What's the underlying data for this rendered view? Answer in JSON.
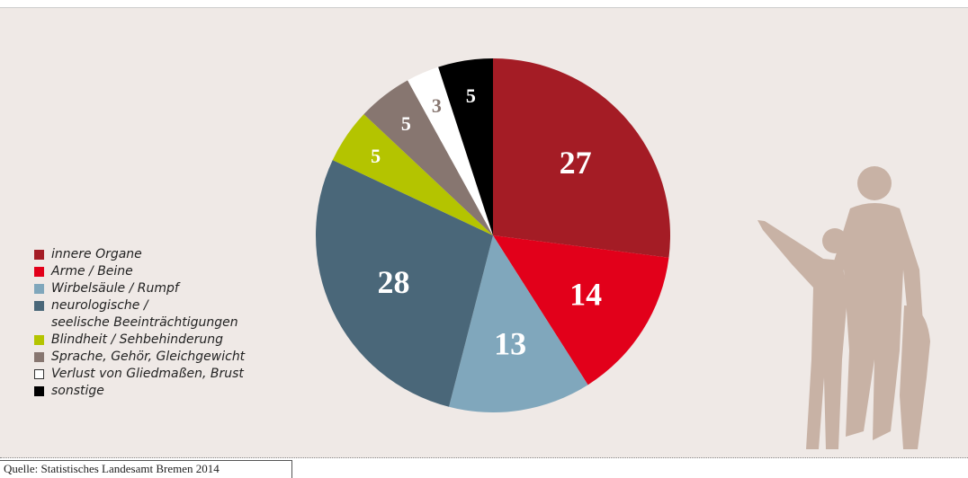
{
  "chart_data": {
    "type": "pie",
    "categories": [
      "innere Organe",
      "Arme / Beine",
      "Wirbelsäule / Rumpf",
      "neurologische /\nseelische Beeinträchtigungen",
      "Blindheit / Sehbehinderung",
      "Sprache, Gehör, Gleichgewicht",
      "Verlust von Gliedmaßen, Brust",
      "sonstige"
    ],
    "values": [
      27,
      14,
      13,
      28,
      5,
      5,
      3,
      5
    ],
    "colors": [
      "#a41c25",
      "#e2001a",
      "#80a7bc",
      "#4a6779",
      "#b4c400",
      "#877670",
      "#ffffff",
      "#000000"
    ],
    "source": "Quelle: Statistisches Landesamt Bremen 2014"
  }
}
